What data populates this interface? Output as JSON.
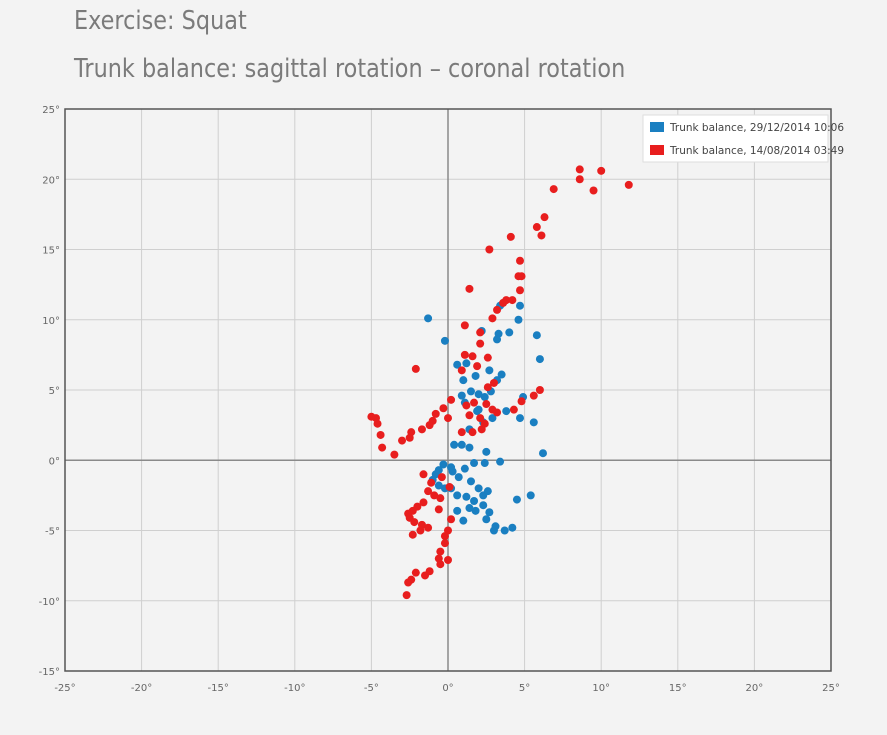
{
  "header": {
    "title": "Exercise: Squat",
    "subtitle": "Trunk balance: sagittal rotation – coronal rotation"
  },
  "chart_data": {
    "type": "scatter",
    "xlim": [
      -25,
      25
    ],
    "ylim": [
      -15,
      25
    ],
    "x_ticks": [
      -25,
      -20,
      -15,
      -10,
      -5,
      0,
      5,
      10,
      15,
      20,
      25
    ],
    "y_ticks": [
      -15,
      -10,
      -5,
      0,
      5,
      10,
      15,
      20,
      25
    ],
    "tick_suffix": "°",
    "grid": true,
    "legend_position": "top-right",
    "series": [
      {
        "name": "Trunk balance, 29/12/2014 10:06",
        "color": "#1a7fc1",
        "points": [
          [
            -1.3,
            10.1
          ],
          [
            -0.2,
            8.5
          ],
          [
            3.4,
            11.0
          ],
          [
            4.7,
            11.0
          ],
          [
            4.6,
            10.0
          ],
          [
            2.2,
            9.2
          ],
          [
            3.3,
            9.0
          ],
          [
            3.2,
            8.6
          ],
          [
            4.0,
            9.1
          ],
          [
            5.8,
            8.9
          ],
          [
            6.0,
            7.2
          ],
          [
            4.9,
            4.5
          ],
          [
            3.8,
            3.5
          ],
          [
            4.7,
            3.0
          ],
          [
            5.6,
            2.7
          ],
          [
            6.2,
            0.5
          ],
          [
            5.4,
            -2.5
          ],
          [
            4.5,
            -2.8
          ],
          [
            4.2,
            -4.8
          ],
          [
            3.7,
            -5.0
          ],
          [
            3.1,
            -4.7
          ],
          [
            2.5,
            -4.2
          ],
          [
            1.8,
            -3.6
          ],
          [
            1.0,
            -4.3
          ],
          [
            0.6,
            -3.6
          ],
          [
            -0.2,
            -2.0
          ],
          [
            -0.6,
            -1.8
          ],
          [
            -0.8,
            -1.0
          ],
          [
            -1.0,
            -1.4
          ],
          [
            -0.3,
            -0.3
          ],
          [
            0.2,
            -0.5
          ],
          [
            0.7,
            -1.2
          ],
          [
            1.1,
            -0.6
          ],
          [
            1.7,
            -0.2
          ],
          [
            2.4,
            -0.2
          ],
          [
            3.4,
            -0.1
          ],
          [
            2.5,
            0.6
          ],
          [
            1.4,
            0.9
          ],
          [
            0.9,
            1.1
          ],
          [
            0.4,
            1.1
          ],
          [
            1.4,
            2.2
          ],
          [
            2.3,
            2.7
          ],
          [
            2.9,
            3.0
          ],
          [
            2.0,
            3.6
          ],
          [
            1.1,
            4.1
          ],
          [
            0.9,
            4.6
          ],
          [
            1.0,
            5.7
          ],
          [
            1.8,
            6.0
          ],
          [
            2.7,
            6.4
          ],
          [
            3.5,
            6.1
          ],
          [
            3.2,
            5.7
          ],
          [
            2.8,
            4.9
          ],
          [
            2.4,
            4.5
          ],
          [
            2.0,
            4.7
          ],
          [
            1.9,
            3.5
          ],
          [
            1.5,
            4.9
          ],
          [
            1.2,
            6.9
          ],
          [
            0.6,
            6.8
          ],
          [
            0.3,
            -0.8
          ],
          [
            1.5,
            -1.5
          ],
          [
            2.0,
            -2.0
          ],
          [
            2.3,
            -2.5
          ],
          [
            1.7,
            -2.9
          ],
          [
            1.2,
            -2.6
          ],
          [
            0.6,
            -2.5
          ],
          [
            0.2,
            -2.0
          ],
          [
            -0.6,
            -0.7
          ],
          [
            2.3,
            -3.2
          ],
          [
            2.6,
            -2.2
          ],
          [
            1.4,
            -3.4
          ],
          [
            2.7,
            -3.7
          ],
          [
            3.0,
            -5.0
          ]
        ]
      },
      {
        "name": "Trunk balance, 14/08/2014 03:49",
        "color": "#e81e1e",
        "points": [
          [
            8.6,
            20.7
          ],
          [
            10.0,
            20.6
          ],
          [
            8.6,
            20.0
          ],
          [
            11.8,
            19.6
          ],
          [
            9.5,
            19.2
          ],
          [
            6.9,
            19.3
          ],
          [
            6.3,
            17.3
          ],
          [
            5.8,
            16.6
          ],
          [
            6.1,
            16.0
          ],
          [
            4.1,
            15.9
          ],
          [
            2.7,
            15.0
          ],
          [
            4.7,
            14.2
          ],
          [
            4.6,
            13.1
          ],
          [
            4.8,
            13.1
          ],
          [
            4.7,
            12.1
          ],
          [
            1.4,
            12.2
          ],
          [
            3.8,
            11.4
          ],
          [
            4.2,
            11.4
          ],
          [
            3.6,
            11.2
          ],
          [
            3.2,
            10.7
          ],
          [
            2.9,
            10.1
          ],
          [
            1.1,
            9.6
          ],
          [
            2.1,
            9.1
          ],
          [
            2.1,
            8.3
          ],
          [
            2.6,
            7.3
          ],
          [
            1.6,
            7.4
          ],
          [
            1.1,
            7.5
          ],
          [
            1.9,
            6.7
          ],
          [
            0.9,
            6.4
          ],
          [
            -2.1,
            6.5
          ],
          [
            6.0,
            5.0
          ],
          [
            5.6,
            4.6
          ],
          [
            4.8,
            4.2
          ],
          [
            4.3,
            3.6
          ],
          [
            3.2,
            3.4
          ],
          [
            2.9,
            3.6
          ],
          [
            2.5,
            4.0
          ],
          [
            1.7,
            4.1
          ],
          [
            1.2,
            3.9
          ],
          [
            1.4,
            3.2
          ],
          [
            2.1,
            3.0
          ],
          [
            2.4,
            2.6
          ],
          [
            2.2,
            2.2
          ],
          [
            1.6,
            2.0
          ],
          [
            0.9,
            2.0
          ],
          [
            0.0,
            3.0
          ],
          [
            -0.3,
            3.7
          ],
          [
            -0.8,
            3.3
          ],
          [
            -1.0,
            2.8
          ],
          [
            -1.2,
            2.5
          ],
          [
            -1.7,
            2.2
          ],
          [
            -2.4,
            2.0
          ],
          [
            -2.5,
            1.6
          ],
          [
            -3.0,
            1.4
          ],
          [
            -3.5,
            0.4
          ],
          [
            -4.3,
            0.9
          ],
          [
            -4.4,
            1.8
          ],
          [
            -4.6,
            2.6
          ],
          [
            -4.7,
            3.0
          ],
          [
            -5.0,
            3.1
          ],
          [
            0.2,
            4.3
          ],
          [
            2.6,
            5.2
          ],
          [
            3.0,
            5.5
          ],
          [
            -1.1,
            -1.6
          ],
          [
            -1.3,
            -2.2
          ],
          [
            -1.6,
            -3.0
          ],
          [
            -2.0,
            -3.3
          ],
          [
            -2.3,
            -3.6
          ],
          [
            -2.6,
            -3.8
          ],
          [
            -2.5,
            -4.1
          ],
          [
            -2.2,
            -4.4
          ],
          [
            -1.7,
            -4.6
          ],
          [
            -1.3,
            -4.8
          ],
          [
            -1.8,
            -5.0
          ],
          [
            -2.3,
            -5.3
          ],
          [
            -0.5,
            -2.7
          ],
          [
            -0.6,
            -3.5
          ],
          [
            -0.9,
            -2.5
          ],
          [
            0.2,
            -4.2
          ],
          [
            0.0,
            -5.0
          ],
          [
            -0.2,
            -5.4
          ],
          [
            -0.2,
            -5.9
          ],
          [
            -0.5,
            -6.5
          ],
          [
            -0.6,
            -7.0
          ],
          [
            -0.5,
            -7.4
          ],
          [
            0.0,
            -7.1
          ],
          [
            -1.2,
            -7.9
          ],
          [
            -1.5,
            -8.2
          ],
          [
            -2.1,
            -8.0
          ],
          [
            -2.4,
            -8.5
          ],
          [
            -2.6,
            -8.7
          ],
          [
            -2.7,
            -9.6
          ],
          [
            0.1,
            -1.9
          ],
          [
            -0.4,
            -1.2
          ],
          [
            -1.6,
            -1.0
          ]
        ]
      }
    ]
  }
}
